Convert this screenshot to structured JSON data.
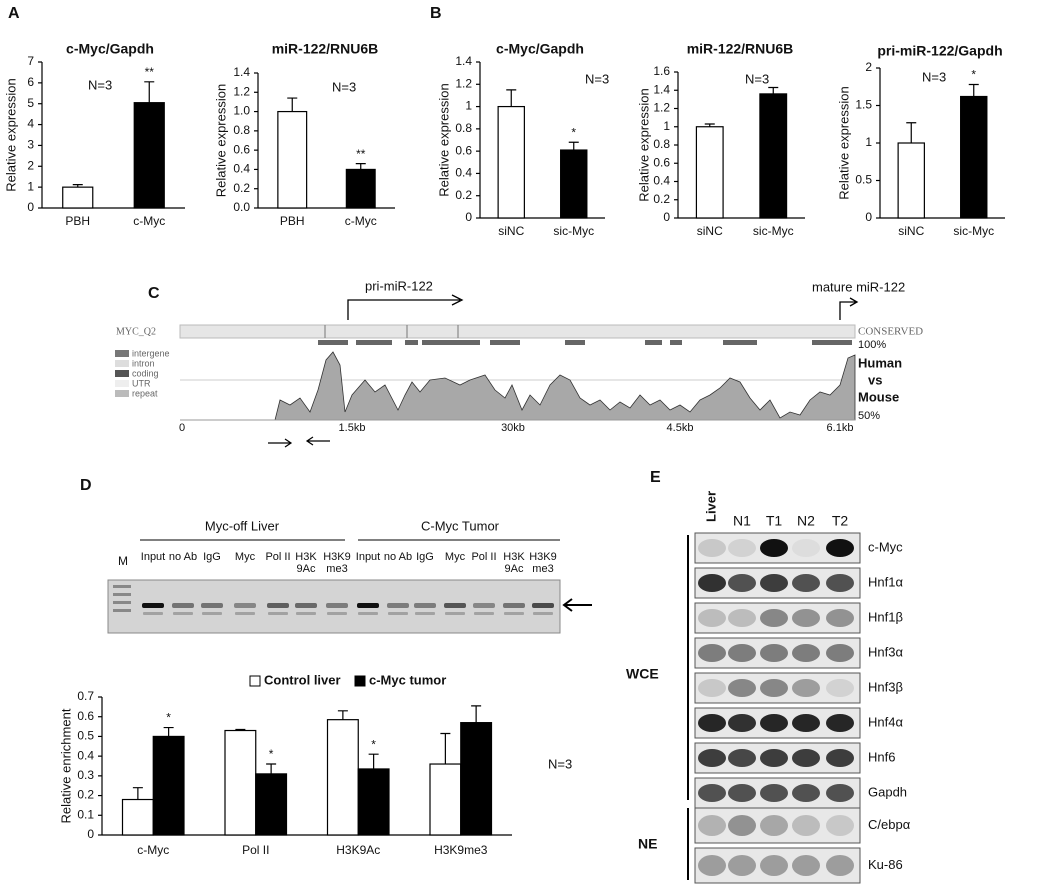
{
  "panel_labels": [
    "A",
    "B",
    "C",
    "D",
    "E"
  ],
  "chart_data": [
    {
      "type": "bar",
      "title": "c-Myc/Gapdh",
      "ylabel": "Relative expression",
      "annotation": "N=3",
      "categories": [
        "PBH",
        "c-Myc"
      ],
      "values": [
        1.0,
        5.05
      ],
      "error": [
        0.12,
        1.0
      ],
      "value_annotations": [
        null,
        "**"
      ],
      "colors": [
        "#ffffff",
        "#000000"
      ],
      "ylim": [
        0,
        7
      ],
      "yticks": [
        0,
        1,
        2,
        3,
        4,
        5,
        6,
        7
      ]
    },
    {
      "type": "bar",
      "title": "miR-122/RNU6B",
      "ylabel": "Relative expression",
      "annotation": "N=3",
      "categories": [
        "PBH",
        "c-Myc"
      ],
      "values": [
        1.0,
        0.4
      ],
      "error": [
        0.14,
        0.06
      ],
      "value_annotations": [
        null,
        "**"
      ],
      "colors": [
        "#ffffff",
        "#000000"
      ],
      "ylim": [
        0,
        1.4
      ],
      "yticks": [
        {
          "value": 0,
          "label": "0.0"
        },
        0.2,
        0.4,
        0.6,
        0.8,
        {
          "value": 1,
          "label": "1.0"
        },
        1.2,
        1.4
      ]
    },
    {
      "type": "bar",
      "title": "c-Myc/Gapdh",
      "ylabel": "Relative expression",
      "annotation": "N=3",
      "categories": [
        "siNC",
        "sic-Myc"
      ],
      "values": [
        1.0,
        0.61
      ],
      "error": [
        0.15,
        0.07
      ],
      "value_annotations": [
        null,
        "*"
      ],
      "colors": [
        "#ffffff",
        "#000000"
      ],
      "ylim": [
        0,
        1.4
      ],
      "yticks": [
        0,
        0.2,
        0.4,
        0.6,
        0.8,
        1,
        1.2,
        1.4
      ]
    },
    {
      "type": "bar",
      "title": "miR-122/RNU6B",
      "ylabel": "Relative expression",
      "annotation": "N=3",
      "categories": [
        "siNC",
        "sic-Myc"
      ],
      "values": [
        1.0,
        1.36
      ],
      "error": [
        0.03,
        0.07
      ],
      "colors": [
        "#ffffff",
        "#000000"
      ],
      "ylim": [
        0,
        1.6
      ],
      "yticks": [
        0,
        0.2,
        0.4,
        0.6,
        0.8,
        1,
        1.2,
        1.4,
        1.6
      ]
    },
    {
      "type": "bar",
      "title": "pri-miR-122/Gapdh",
      "ylabel": "Relative expression",
      "annotation": "N=3",
      "categories": [
        "siNC",
        "sic-Myc"
      ],
      "values": [
        1.0,
        1.62
      ],
      "error": [
        0.27,
        0.16
      ],
      "value_annotations": [
        null,
        "*"
      ],
      "colors": [
        "#ffffff",
        "#000000"
      ],
      "ylim": [
        0,
        2
      ],
      "yticks": [
        0,
        0.5,
        1,
        1.5,
        2
      ]
    },
    {
      "type": "grouped_bar",
      "ylabel": "Relative enrichment",
      "annotation": "N=3",
      "categories": [
        "c-Myc",
        "Pol II",
        "H3K9Ac",
        "H3K9me3"
      ],
      "series": [
        {
          "name": "Control liver",
          "color": "#ffffff",
          "values": [
            0.18,
            0.53,
            0.585,
            0.36
          ],
          "error": [
            0.06,
            0.005,
            0.045,
            0.155
          ]
        },
        {
          "name": "c-Myc tumor",
          "color": "#000000",
          "values": [
            0.5,
            0.31,
            0.335,
            0.57
          ],
          "error": [
            0.045,
            0.05,
            0.075,
            0.085
          ],
          "value_annotations": [
            "*",
            "*",
            "*",
            null
          ]
        }
      ],
      "ylim": [
        0,
        0.7
      ],
      "yticks": [
        0,
        0.1,
        0.2,
        0.3,
        0.4,
        0.5,
        0.6,
        0.7
      ]
    }
  ],
  "panel_c": {
    "pri_label": "pri-miR-122",
    "mature_label": "mature miR-122",
    "track": "MYC_Q2",
    "track_note": "CONSERVED",
    "top_percent": "100%",
    "bottom_percent": "50%",
    "comparison": [
      "Human",
      "vs",
      "Mouse"
    ],
    "legend": [
      "intergene",
      "intron",
      "coding",
      "UTR",
      "repeat"
    ],
    "axis_labels": [
      "0",
      "1.5kb",
      "30kb",
      "4.5kb",
      "6.1kb"
    ]
  },
  "panel_d_gel": {
    "marker": "M",
    "groups": [
      "Myc-off Liver",
      "C-Myc Tumor"
    ],
    "lanes": [
      [
        "Input"
      ],
      [
        "no Ab"
      ],
      [
        "IgG"
      ],
      [
        "Myc"
      ],
      [
        "Pol II"
      ],
      [
        "H3K",
        "9Ac"
      ],
      [
        "H3K9",
        "me3"
      ]
    ]
  },
  "panel_e": {
    "lanes": [
      "Liver",
      "N1",
      "T1",
      "N2",
      "T2"
    ],
    "wce_label": "WCE",
    "wce_rows": [
      "c-Myc",
      "Hnf1α",
      "Hnf1β",
      "Hnf3α",
      "Hnf3β",
      "Hnf4α",
      "Hnf6",
      "Gapdh"
    ],
    "ne_label": "NE",
    "ne_rows": [
      "C/ebpα",
      "Ku-86"
    ]
  }
}
